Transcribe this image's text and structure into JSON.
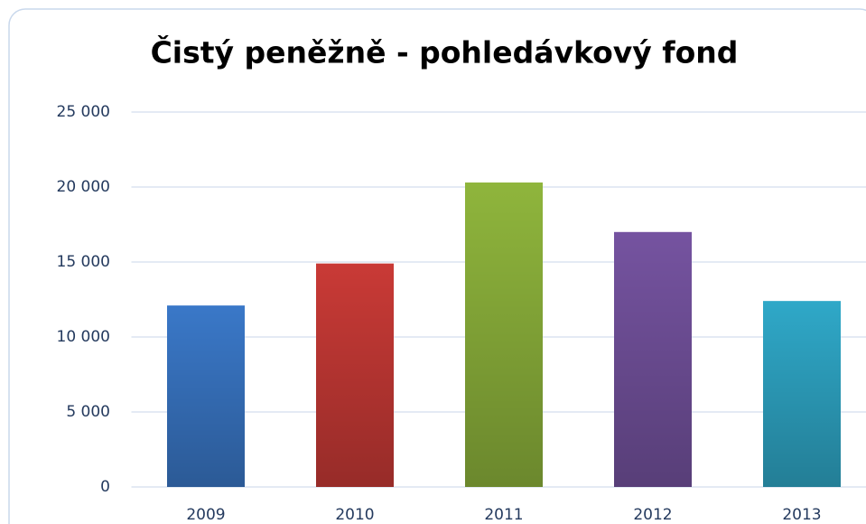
{
  "chart_data": {
    "type": "bar",
    "title": "Čistý peněžně - pohledávkový fond",
    "categories": [
      "2009",
      "2010",
      "2011",
      "2012",
      "2013"
    ],
    "values": [
      12100,
      14900,
      20300,
      17000,
      12400
    ],
    "colors": [
      "#3a78c8",
      "#c93a36",
      "#8fb53c",
      "#7553a0",
      "#2fa8c8"
    ],
    "ylim": [
      0,
      25000
    ],
    "yticks": [
      {
        "value": 0,
        "label": "0"
      },
      {
        "value": 5000,
        "label": "5 000"
      },
      {
        "value": 10000,
        "label": "10 000"
      },
      {
        "value": 15000,
        "label": "15 000"
      },
      {
        "value": 20000,
        "label": "20 000"
      },
      {
        "value": 25000,
        "label": "25 000"
      }
    ],
    "grid": true
  }
}
